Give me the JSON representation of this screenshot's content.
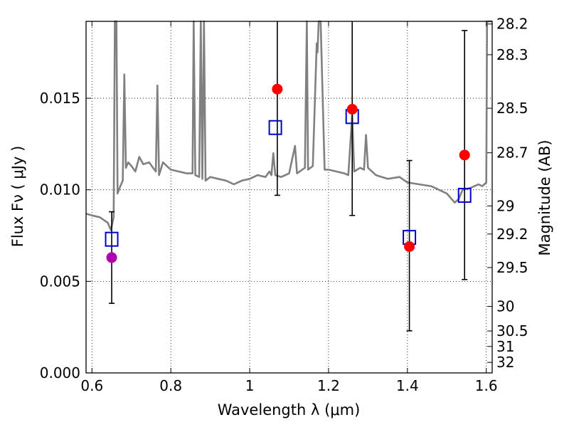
{
  "chart_data": {
    "type": "scatter",
    "xlabel": "Wavelength  λ (μm)",
    "ylabel": "Flux  Fν  ( μJy )",
    "ylabel_right": "Magnitude (AB)",
    "xlim": [
      0.585,
      1.615
    ],
    "ylim": [
      0.0,
      0.0192
    ],
    "grid": true,
    "x_ticks": [
      {
        "value": 0.6,
        "label": "0.6"
      },
      {
        "value": 0.8,
        "label": "0.8"
      },
      {
        "value": 1.0,
        "label": "1"
      },
      {
        "value": 1.2,
        "label": "1.2"
      },
      {
        "value": 1.4,
        "label": "1.4"
      },
      {
        "value": 1.6,
        "label": "1.6"
      }
    ],
    "y_ticks": [
      {
        "value": 0.0,
        "label": "0.000"
      },
      {
        "value": 0.005,
        "label": "0.005"
      },
      {
        "value": 0.01,
        "label": "0.010"
      },
      {
        "value": 0.015,
        "label": "0.015"
      }
    ],
    "mag_ticks": [
      {
        "value": 28.2,
        "label": "28.2"
      },
      {
        "value": 28.3,
        "label": "28.3"
      },
      {
        "value": 28.5,
        "label": "28.5"
      },
      {
        "value": 28.7,
        "label": "28.7"
      },
      {
        "value": 29,
        "label": "29"
      },
      {
        "value": 29.2,
        "label": "29.2"
      },
      {
        "value": 29.5,
        "label": "29.5"
      },
      {
        "value": 30,
        "label": "30"
      },
      {
        "value": 30.5,
        "label": "30.5"
      },
      {
        "value": 31,
        "label": "31"
      },
      {
        "value": 32,
        "label": "32"
      }
    ],
    "series": [
      {
        "kind": "spectrum",
        "color": "#808080",
        "points": [
          [
            0.585,
            0.0087
          ],
          [
            0.6,
            0.0086
          ],
          [
            0.62,
            0.0085
          ],
          [
            0.64,
            0.0082
          ],
          [
            0.648,
            0.0078
          ],
          [
            0.652,
            0.0082
          ],
          [
            0.655,
            0.0085
          ],
          [
            0.658,
            0.02
          ],
          [
            0.662,
            0.02
          ],
          [
            0.665,
            0.0098
          ],
          [
            0.672,
            0.0102
          ],
          [
            0.678,
            0.0105
          ],
          [
            0.682,
            0.0163
          ],
          [
            0.686,
            0.0112
          ],
          [
            0.692,
            0.0115
          ],
          [
            0.7,
            0.0113
          ],
          [
            0.71,
            0.011
          ],
          [
            0.72,
            0.0118
          ],
          [
            0.73,
            0.0114
          ],
          [
            0.745,
            0.0115
          ],
          [
            0.755,
            0.0112
          ],
          [
            0.762,
            0.011
          ],
          [
            0.766,
            0.0157
          ],
          [
            0.77,
            0.0108
          ],
          [
            0.78,
            0.0115
          ],
          [
            0.79,
            0.0113
          ],
          [
            0.8,
            0.0111
          ],
          [
            0.82,
            0.011
          ],
          [
            0.84,
            0.0109
          ],
          [
            0.855,
            0.0109
          ],
          [
            0.858,
            0.02
          ],
          [
            0.862,
            0.0108
          ],
          [
            0.872,
            0.0107
          ],
          [
            0.876,
            0.02
          ],
          [
            0.88,
            0.0106
          ],
          [
            0.884,
            0.02
          ],
          [
            0.888,
            0.0105
          ],
          [
            0.9,
            0.0107
          ],
          [
            0.92,
            0.0106
          ],
          [
            0.94,
            0.0105
          ],
          [
            0.96,
            0.0103
          ],
          [
            0.98,
            0.0105
          ],
          [
            1.0,
            0.0106
          ],
          [
            1.02,
            0.0108
          ],
          [
            1.04,
            0.0107
          ],
          [
            1.05,
            0.011
          ],
          [
            1.055,
            0.0108
          ],
          [
            1.06,
            0.012
          ],
          [
            1.065,
            0.0108
          ],
          [
            1.08,
            0.0107
          ],
          [
            1.1,
            0.0109
          ],
          [
            1.115,
            0.0124
          ],
          [
            1.12,
            0.0109
          ],
          [
            1.14,
            0.0112
          ],
          [
            1.145,
            0.0192
          ],
          [
            1.148,
            0.0111
          ],
          [
            1.16,
            0.0113
          ],
          [
            1.17,
            0.018
          ],
          [
            1.172,
            0.0175
          ],
          [
            1.175,
            0.0192
          ],
          [
            1.18,
            0.0192
          ],
          [
            1.19,
            0.0111
          ],
          [
            1.2,
            0.0111
          ],
          [
            1.22,
            0.011
          ],
          [
            1.24,
            0.0109
          ],
          [
            1.25,
            0.0108
          ],
          [
            1.26,
            0.0141
          ],
          [
            1.265,
            0.011
          ],
          [
            1.28,
            0.0112
          ],
          [
            1.29,
            0.0111
          ],
          [
            1.295,
            0.013
          ],
          [
            1.3,
            0.0112
          ],
          [
            1.32,
            0.0108
          ],
          [
            1.35,
            0.0106
          ],
          [
            1.38,
            0.0107
          ],
          [
            1.4,
            0.0104
          ],
          [
            1.43,
            0.0103
          ],
          [
            1.46,
            0.0102
          ],
          [
            1.48,
            0.01
          ],
          [
            1.5,
            0.0098
          ],
          [
            1.52,
            0.0093
          ],
          [
            1.53,
            0.0095
          ],
          [
            1.54,
            0.01
          ],
          [
            1.56,
            0.0101
          ],
          [
            1.58,
            0.0103
          ],
          [
            1.59,
            0.0102
          ],
          [
            1.6,
            0.0104
          ],
          [
            1.602,
            0.0192
          ],
          [
            1.615,
            0.0192
          ]
        ]
      },
      {
        "kind": "model-boxes",
        "marker": "open-square",
        "color": "#0000cc",
        "points": [
          [
            0.65,
            0.0073
          ],
          [
            1.065,
            0.0134
          ],
          [
            1.26,
            0.014
          ],
          [
            1.405,
            0.0074
          ],
          [
            1.545,
            0.0097
          ]
        ]
      },
      {
        "kind": "measurements",
        "marker": "filled-circle",
        "color": "#ff0000",
        "points": [
          {
            "x": 1.07,
            "y": 0.0155,
            "lo": 0.0097,
            "hi": 0.0192
          },
          {
            "x": 1.26,
            "y": 0.0144,
            "lo": 0.0086,
            "hi": 0.0192
          },
          {
            "x": 1.405,
            "y": 0.0069,
            "lo": 0.0023,
            "hi": 0.0116
          },
          {
            "x": 1.545,
            "y": 0.0119,
            "lo": 0.0051,
            "hi": 0.0187
          }
        ]
      },
      {
        "kind": "measurement-optical",
        "marker": "filled-circle",
        "color": "#b000b0",
        "points": [
          {
            "x": 0.65,
            "y": 0.0063,
            "lo": 0.0038,
            "hi": 0.0088
          }
        ]
      }
    ]
  }
}
